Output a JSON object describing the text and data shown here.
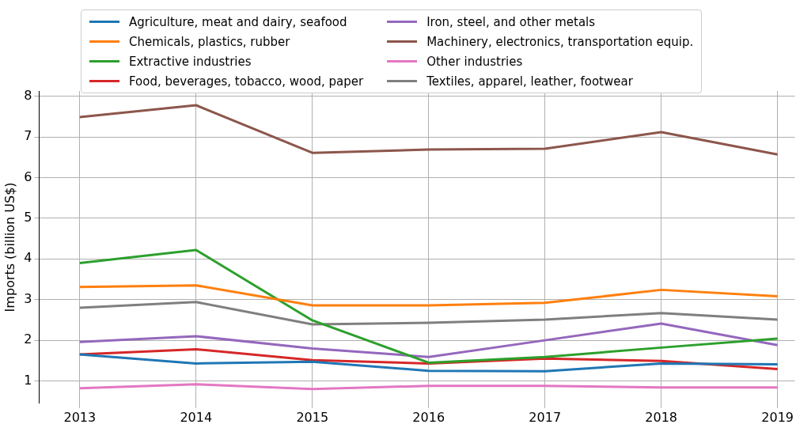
{
  "chart_data": {
    "type": "line",
    "ylabel": "Imports (billion US$)",
    "x": [
      2013,
      2014,
      2015,
      2016,
      2017,
      2018,
      2019
    ],
    "xlim": [
      2012.65,
      2019.15
    ],
    "xticks": [
      2013,
      2014,
      2015,
      2016,
      2017,
      2018,
      2019
    ],
    "ylim": [
      0.45,
      8.13
    ],
    "yticks": [
      1,
      2,
      3,
      4,
      5,
      6,
      7,
      8
    ],
    "grid": true,
    "legend": "top",
    "marker": "none",
    "line_style": "solid",
    "series": [
      {
        "name": "Agriculture, meat and dairy, seafood",
        "color": "#1f77b4",
        "values": [
          1.65,
          1.43,
          1.47,
          1.25,
          1.24,
          1.43,
          1.41
        ]
      },
      {
        "name": "Chemicals, plastics, rubber",
        "color": "#ff7f0e",
        "values": [
          3.31,
          3.35,
          2.86,
          2.86,
          2.92,
          3.24,
          3.08
        ]
      },
      {
        "name": "Extractive industries",
        "color": "#2ca02c",
        "values": [
          3.9,
          4.22,
          2.49,
          1.45,
          1.59,
          1.82,
          2.04
        ]
      },
      {
        "name": "Food, beverages, tobacco, wood, paper",
        "color": "#d62728",
        "values": [
          1.65,
          1.78,
          1.51,
          1.43,
          1.55,
          1.49,
          1.29
        ]
      },
      {
        "name": "Iron, steel, and other metals",
        "color": "#9467bd",
        "values": [
          1.96,
          2.1,
          1.8,
          1.59,
          2.0,
          2.41,
          1.88
        ]
      },
      {
        "name": "Machinery, electronics, transportation equip.",
        "color": "#8c564b",
        "values": [
          7.49,
          7.78,
          6.61,
          6.69,
          6.71,
          7.12,
          6.57
        ]
      },
      {
        "name": "Other industries",
        "color": "#e377c2",
        "values": [
          0.82,
          0.92,
          0.8,
          0.88,
          0.88,
          0.84,
          0.84
        ]
      },
      {
        "name": "Textiles, apparel, leather, footwear",
        "color": "#7f7f7f",
        "values": [
          2.8,
          2.94,
          2.39,
          2.43,
          2.51,
          2.67,
          2.51
        ]
      }
    ]
  }
}
